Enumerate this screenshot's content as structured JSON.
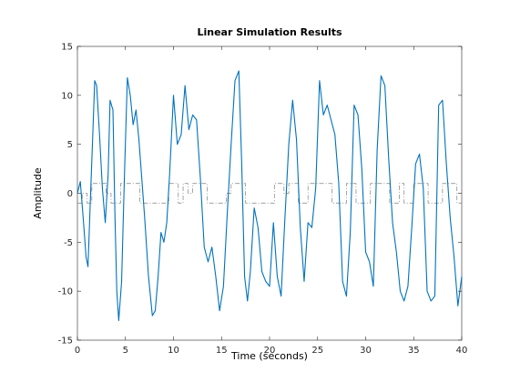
{
  "chart_data": {
    "type": "line",
    "title": "Linear Simulation Results",
    "xlabel": "Time (seconds)",
    "ylabel": "Amplitude",
    "xlim": [
      0,
      40
    ],
    "ylim": [
      -15,
      15
    ],
    "xticks": [
      0,
      5,
      10,
      15,
      20,
      25,
      30,
      35,
      40
    ],
    "yticks": [
      -15,
      -10,
      -5,
      0,
      5,
      10,
      15
    ],
    "xtick_labels": [
      "0",
      "5",
      "10",
      "15",
      "20",
      "25",
      "30",
      "35",
      "40"
    ],
    "ytick_labels": [
      "-15",
      "-10",
      "-5",
      "0",
      "5",
      "10",
      "15"
    ],
    "grid": false,
    "series": [
      {
        "color": "#0072bd",
        "style": "solid",
        "x": [
          0,
          0.3,
          0.6,
          0.9,
          1.1,
          1.3,
          1.6,
          1.8,
          2.0,
          2.3,
          2.6,
          2.9,
          3.2,
          3.4,
          3.7,
          3.9,
          4.1,
          4.3,
          4.6,
          4.9,
          5.2,
          5.5,
          5.8,
          6.1,
          6.4,
          6.7,
          7.0,
          7.4,
          7.8,
          8.1,
          8.4,
          8.7,
          9.0,
          9.3,
          9.6,
          10.0,
          10.4,
          10.8,
          11.2,
          11.6,
          12.0,
          12.4,
          12.8,
          13.2,
          13.6,
          14.0,
          14.4,
          14.8,
          15.2,
          15.6,
          16.0,
          16.4,
          16.8,
          17.1,
          17.4,
          17.7,
          18.0,
          18.4,
          18.8,
          19.2,
          19.6,
          20.0,
          20.4,
          20.8,
          21.2,
          21.6,
          22.0,
          22.4,
          22.8,
          23.2,
          23.6,
          24.0,
          24.4,
          24.8,
          25.2,
          25.6,
          26.0,
          26.4,
          26.8,
          27.2,
          27.6,
          28.0,
          28.4,
          28.8,
          29.2,
          29.6,
          30.0,
          30.4,
          30.8,
          31.2,
          31.6,
          32.0,
          32.4,
          32.8,
          33.2,
          33.6,
          34.0,
          34.4,
          34.8,
          35.2,
          35.6,
          36.0,
          36.4,
          36.8,
          37.2,
          37.6,
          38.0,
          38.4,
          38.8,
          39.2,
          39.6,
          40.0
        ],
        "y": [
          0,
          1.2,
          -2.5,
          -6.5,
          -7.5,
          -2.0,
          6.0,
          11.5,
          11.0,
          6.0,
          0.5,
          -3.0,
          2.0,
          9.5,
          8.5,
          -2.0,
          -10.0,
          -13.0,
          -9.0,
          2.0,
          11.8,
          10.0,
          7.0,
          8.5,
          5.5,
          1.5,
          -2.5,
          -8.5,
          -12.5,
          -12.0,
          -8.5,
          -4.0,
          -5.0,
          -3.0,
          2.0,
          10.0,
          5.0,
          6.0,
          11.0,
          6.5,
          8.0,
          7.5,
          1.5,
          -5.5,
          -7.0,
          -5.5,
          -8.5,
          -12.0,
          -9.5,
          -2.0,
          5.0,
          11.5,
          12.5,
          3.0,
          -8.5,
          -11.0,
          -8.0,
          -1.5,
          -3.5,
          -8.0,
          -9.0,
          -9.5,
          -3.0,
          -8.5,
          -10.5,
          -2.5,
          5.0,
          9.5,
          5.5,
          -3.5,
          -9.0,
          -3.0,
          -3.5,
          0.5,
          11.5,
          8.0,
          9.0,
          7.5,
          6.0,
          1.0,
          -9.0,
          -10.5,
          -4.0,
          9.0,
          8.0,
          2.5,
          -6.0,
          -7.0,
          -9.5,
          4.5,
          12.0,
          11.0,
          3.5,
          -3.0,
          -6.0,
          -10.0,
          -11.0,
          -9.5,
          -3.5,
          3.0,
          4.0,
          0.5,
          -10.0,
          -11.0,
          -10.5,
          9.0,
          9.5,
          3.0,
          -2.5,
          -6.5,
          -11.5,
          -8.5
        ]
      },
      {
        "color": "#7f7f7f",
        "style": "dashdot",
        "x": [
          0,
          0.5,
          1.0,
          1.5,
          2.0,
          2.5,
          3.0,
          3.5,
          4.0,
          4.5,
          5.0,
          5.5,
          6.0,
          6.5,
          7.0,
          7.5,
          8.0,
          8.5,
          9.0,
          9.5,
          10.0,
          10.5,
          11.0,
          11.5,
          12.0,
          12.5,
          13.0,
          13.5,
          14.0,
          14.5,
          15.0,
          15.5,
          16.0,
          16.5,
          17.0,
          17.5,
          18.0,
          18.5,
          19.0,
          19.5,
          20.0,
          20.5,
          21.0,
          21.5,
          22.0,
          22.5,
          23.0,
          23.5,
          24.0,
          24.5,
          25.0,
          25.5,
          26.0,
          26.5,
          27.0,
          27.5,
          28.0,
          28.5,
          29.0,
          29.5,
          30.0,
          30.5,
          31.0,
          31.5,
          32.0,
          32.5,
          33.0,
          33.5,
          34.0,
          34.5,
          35.0,
          35.5,
          36.0,
          36.5,
          37.0,
          37.5,
          38.0,
          38.5,
          39.0,
          39.5,
          40.0
        ],
        "y": [
          -1,
          0,
          -1,
          1,
          1,
          1,
          0,
          -1,
          -1,
          1,
          1,
          1,
          1,
          -1,
          -1,
          -1,
          -1,
          -1,
          -1,
          1,
          1,
          -1,
          1,
          0,
          1,
          1,
          1,
          -1,
          -1,
          -1,
          -1,
          0,
          1,
          1,
          1,
          -1,
          -1,
          -1,
          -1,
          -1,
          -1,
          1,
          1,
          0,
          1,
          1,
          -1,
          -1,
          1,
          1,
          1,
          1,
          1,
          -1,
          -1,
          -1,
          1,
          1,
          -1,
          -1,
          -1,
          1,
          1,
          1,
          1,
          -1,
          -1,
          1,
          -1,
          -1,
          1,
          1,
          1,
          -1,
          -1,
          -1,
          1,
          1,
          1,
          -1,
          -1
        ]
      }
    ]
  }
}
